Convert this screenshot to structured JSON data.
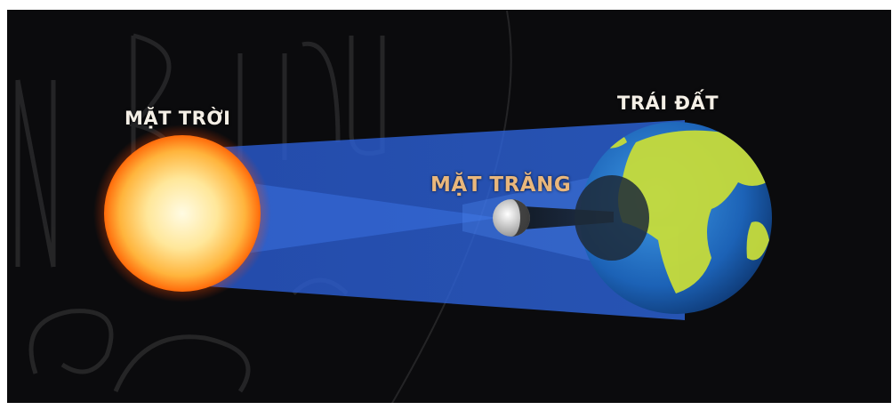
{
  "labels": {
    "sun": "MẶT TRỜI",
    "moon": "MẶT TRĂNG",
    "earth": "TRÁI ĐẤT"
  },
  "colors": {
    "background": "#0b0b0d",
    "frame": "#ffffff",
    "beam": "#2b5fd6",
    "sun_core": "#fff3c4",
    "sun_edge": "#ff7a10",
    "earth_ocean": "#1f6fc9",
    "earth_land": "#c7dc3a",
    "moon": "#e2e2e2",
    "shadow": "#1d2a38"
  }
}
